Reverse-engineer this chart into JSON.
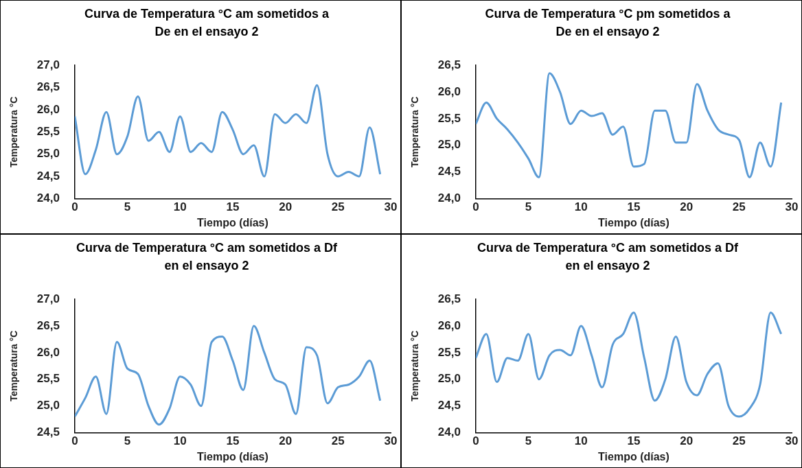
{
  "chart_data": [
    {
      "type": "line",
      "title": "Curva de Temperatura °C am sometidos a De en el ensayo 2",
      "xlabel": "Tiempo (días)",
      "ylabel": "Temperatura °C",
      "x": [
        0,
        1,
        2,
        3,
        4,
        5,
        6,
        7,
        8,
        9,
        10,
        11,
        12,
        13,
        14,
        15,
        16,
        17,
        18,
        19,
        20,
        21,
        22,
        23,
        24,
        25,
        26,
        27,
        28,
        29
      ],
      "series": [
        {
          "color": "#5b9bd5",
          "values": [
            25.85,
            24.55,
            25.1,
            25.95,
            25.0,
            25.4,
            26.3,
            25.3,
            25.5,
            25.05,
            25.85,
            25.05,
            25.25,
            25.05,
            25.95,
            25.55,
            25.0,
            25.2,
            24.5,
            25.9,
            25.7,
            25.9,
            25.7,
            26.55,
            25.0,
            24.5,
            24.6,
            24.5,
            25.6,
            24.55
          ]
        }
      ],
      "xlim": [
        0,
        30
      ],
      "xticks": [
        0,
        5,
        10,
        15,
        20,
        25,
        30
      ],
      "ylim": [
        24,
        27
      ],
      "yticks": [
        {
          "value": 24,
          "label": "24,0"
        },
        {
          "value": 24.5,
          "label": "24,5"
        },
        {
          "value": 25,
          "label": "25,0"
        },
        {
          "value": 25.5,
          "label": "25,5"
        },
        {
          "value": 26,
          "label": "26,0"
        },
        {
          "value": 26.5,
          "label": "26,5"
        },
        {
          "value": 27,
          "label": "27,0"
        }
      ],
      "grid": false,
      "legend": false,
      "marker": "none",
      "line_style": "solid"
    },
    {
      "type": "line",
      "title": "Curva de Temperatura °C pm sometidos a De en el ensayo 2",
      "xlabel": "Tiempo (días)",
      "ylabel": "Temperatura °C",
      "x": [
        0,
        1,
        2,
        3,
        4,
        5,
        6,
        7,
        8,
        9,
        10,
        11,
        12,
        13,
        14,
        15,
        16,
        17,
        18,
        19,
        20,
        21,
        22,
        23,
        24,
        25,
        26,
        27,
        28,
        29
      ],
      "series": [
        {
          "color": "#5b9bd5",
          "values": [
            25.4,
            25.8,
            25.5,
            25.3,
            25.05,
            24.75,
            24.4,
            26.35,
            26.0,
            25.4,
            25.65,
            25.55,
            25.6,
            25.2,
            25.35,
            24.6,
            24.65,
            25.65,
            25.65,
            25.05,
            25.05,
            26.15,
            25.65,
            25.3,
            25.2,
            25.1,
            24.4,
            25.05,
            24.6,
            25.8
          ]
        }
      ],
      "xlim": [
        0,
        30
      ],
      "xticks": [
        0,
        5,
        10,
        15,
        20,
        25,
        30
      ],
      "ylim": [
        24,
        26.5
      ],
      "yticks": [
        {
          "value": 24,
          "label": "24,0"
        },
        {
          "value": 24.5,
          "label": "24,5"
        },
        {
          "value": 25,
          "label": "25,0"
        },
        {
          "value": 25.5,
          "label": "25,5"
        },
        {
          "value": 26,
          "label": "26,0"
        },
        {
          "value": 26.5,
          "label": "26,5"
        }
      ],
      "grid": false,
      "legend": false,
      "marker": "none",
      "line_style": "solid"
    },
    {
      "type": "line",
      "title": "Curva de Temperatura °C am sometidos a Df en el ensayo 2",
      "xlabel": "Tiempo (días)",
      "ylabel": "Temperatura °C",
      "x": [
        0,
        1,
        2,
        3,
        4,
        5,
        6,
        7,
        8,
        9,
        10,
        11,
        12,
        13,
        14,
        15,
        16,
        17,
        18,
        19,
        20,
        21,
        22,
        23,
        24,
        25,
        26,
        27,
        28,
        29
      ],
      "series": [
        {
          "color": "#5b9bd5",
          "values": [
            24.8,
            25.15,
            25.55,
            24.85,
            26.2,
            25.7,
            25.6,
            25.0,
            24.65,
            24.95,
            25.55,
            25.4,
            25.0,
            26.2,
            26.3,
            25.85,
            25.3,
            26.5,
            26.0,
            25.5,
            25.4,
            24.85,
            26.1,
            25.95,
            25.05,
            25.35,
            25.4,
            25.55,
            25.85,
            25.1
          ]
        }
      ],
      "xlim": [
        0,
        30
      ],
      "xticks": [
        0,
        5,
        10,
        15,
        20,
        25,
        30
      ],
      "ylim": [
        24.5,
        27
      ],
      "yticks": [
        {
          "value": 24.5,
          "label": "24,5"
        },
        {
          "value": 25,
          "label": "25,0"
        },
        {
          "value": 25.5,
          "label": "25,5"
        },
        {
          "value": 26,
          "label": "26,0"
        },
        {
          "value": 26.5,
          "label": "26,5"
        },
        {
          "value": 27,
          "label": "27,0"
        }
      ],
      "grid": false,
      "legend": false,
      "marker": "none",
      "line_style": "solid"
    },
    {
      "type": "line",
      "title": "Curva de Temperatura °C am sometidos a Df en el ensayo 2",
      "xlabel": "Tiempo (días)",
      "ylabel": "Temperatura °C",
      "x": [
        0,
        1,
        2,
        3,
        4,
        5,
        6,
        7,
        8,
        9,
        10,
        11,
        12,
        13,
        14,
        15,
        16,
        17,
        18,
        19,
        20,
        21,
        22,
        23,
        24,
        25,
        26,
        27,
        28,
        29
      ],
      "series": [
        {
          "color": "#5b9bd5",
          "values": [
            25.4,
            25.85,
            24.95,
            25.4,
            25.35,
            25.85,
            25.0,
            25.45,
            25.55,
            25.45,
            26.0,
            25.45,
            24.85,
            25.65,
            25.85,
            26.25,
            25.4,
            24.6,
            25.0,
            25.8,
            24.95,
            24.7,
            25.1,
            25.3,
            24.5,
            24.3,
            24.45,
            24.9,
            26.25,
            25.85
          ]
        }
      ],
      "xlim": [
        0,
        30
      ],
      "xticks": [
        0,
        5,
        10,
        15,
        20,
        25,
        30
      ],
      "ylim": [
        24,
        26.5
      ],
      "yticks": [
        {
          "value": 24,
          "label": "24,0"
        },
        {
          "value": 24.5,
          "label": "24,5"
        },
        {
          "value": 25,
          "label": "25,0"
        },
        {
          "value": 25.5,
          "label": "25,5"
        },
        {
          "value": 26,
          "label": "26,0"
        },
        {
          "value": 26.5,
          "label": "26,5"
        }
      ],
      "grid": false,
      "legend": false,
      "marker": "none",
      "line_style": "solid"
    }
  ]
}
